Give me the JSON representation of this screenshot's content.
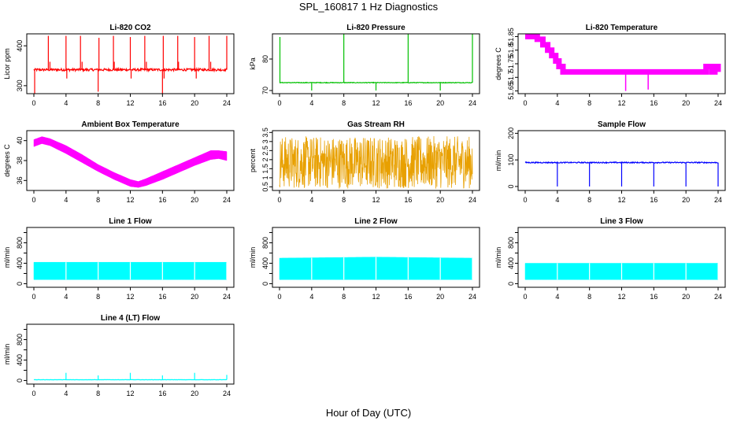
{
  "page_title": "SPL_160817  1 Hz Diagnostics",
  "x_axis_label": "Hour of Day (UTC)",
  "chart_data": [
    {
      "type": "line",
      "title": "Li-820 CO2",
      "ylabel": "Licor ppm",
      "color": "#ff0000",
      "xlim": [
        0,
        24
      ],
      "ylim": [
        280,
        430
      ],
      "xticks": [
        0,
        4,
        8,
        12,
        16,
        20,
        24
      ],
      "yticks": [
        300,
        400
      ],
      "yticklabels": [
        "300",
        "400"
      ],
      "baseline": 340,
      "noise": 3,
      "spikes": [
        [
          1.8,
          425
        ],
        [
          2.0,
          360
        ],
        [
          4.0,
          425
        ],
        [
          5.8,
          425
        ],
        [
          6.0,
          360
        ],
        [
          8.0,
          285
        ],
        [
          8.1,
          420
        ],
        [
          9.9,
          425
        ],
        [
          10.0,
          360
        ],
        [
          12.0,
          422
        ],
        [
          13.8,
          425
        ],
        [
          14.0,
          360
        ],
        [
          16.0,
          270
        ],
        [
          16.1,
          425
        ],
        [
          17.9,
          425
        ],
        [
          18.0,
          360
        ],
        [
          20.0,
          422
        ],
        [
          21.8,
          425
        ],
        [
          22.0,
          360
        ],
        [
          24.0,
          425
        ],
        [
          0.1,
          280
        ],
        [
          4.1,
          318
        ],
        [
          12.1,
          318
        ],
        [
          16.2,
          318
        ],
        [
          20.2,
          318
        ]
      ]
    },
    {
      "type": "line",
      "title": "Li-820 Pressure",
      "ylabel": "kPa",
      "color": "#00c000",
      "xlim": [
        0,
        24
      ],
      "ylim": [
        69,
        88
      ],
      "xticks": [
        0,
        4,
        8,
        12,
        16,
        20,
        24
      ],
      "yticks": [
        70,
        80
      ],
      "yticklabels": [
        "70",
        "80"
      ],
      "baseline": 72.5,
      "noise": 0.1,
      "spikes": [
        [
          0.05,
          87
        ],
        [
          8.0,
          88
        ],
        [
          16.0,
          88
        ],
        [
          24.0,
          88
        ],
        [
          4.0,
          70
        ],
        [
          12.0,
          70
        ],
        [
          20.0,
          70
        ]
      ]
    },
    {
      "type": "step",
      "title": "Li-820 Temperature",
      "ylabel": "degrees C",
      "color": "#ff00ff",
      "xlim": [
        0,
        24
      ],
      "ylim": [
        51.64,
        51.86
      ],
      "xticks": [
        0,
        4,
        8,
        12,
        16,
        20,
        24
      ],
      "yticks": [
        51.65,
        51.7,
        51.75,
        51.8,
        51.85
      ],
      "yticklabels": [
        "51.65",
        "51.7",
        "51.75",
        "51.8",
        "51.85"
      ],
      "points": [
        [
          0,
          51.85
        ],
        [
          1.5,
          51.84
        ],
        [
          2.2,
          51.82
        ],
        [
          2.8,
          51.8
        ],
        [
          3.3,
          51.78
        ],
        [
          3.8,
          51.76
        ],
        [
          4.2,
          51.74
        ],
        [
          4.7,
          51.72
        ],
        [
          5.5,
          51.72
        ],
        [
          10,
          51.72
        ],
        [
          15,
          51.72
        ],
        [
          22.3,
          51.72
        ],
        [
          22.5,
          51.74
        ],
        [
          23.2,
          51.72
        ],
        [
          23.6,
          51.74
        ],
        [
          24,
          51.72
        ]
      ]
    },
    {
      "type": "area",
      "title": "Ambient Box Temperature",
      "ylabel": "degrees C",
      "color": "#ff00ff",
      "xlim": [
        0,
        24
      ],
      "ylim": [
        35,
        41
      ],
      "xticks": [
        0,
        4,
        8,
        12,
        16,
        20,
        24
      ],
      "yticks": [
        36,
        38,
        40
      ],
      "yticklabels": [
        "36",
        "38",
        "40"
      ],
      "upper": [
        [
          0,
          40.1
        ],
        [
          1,
          40.4
        ],
        [
          2,
          40.2
        ],
        [
          4,
          39.5
        ],
        [
          6,
          38.6
        ],
        [
          8,
          37.6
        ],
        [
          10,
          36.8
        ],
        [
          12,
          36.1
        ],
        [
          13,
          35.9
        ],
        [
          14,
          36.2
        ],
        [
          16,
          36.9
        ],
        [
          18,
          37.6
        ],
        [
          20,
          38.3
        ],
        [
          22,
          39.0
        ],
        [
          23,
          39.0
        ],
        [
          24,
          38.9
        ]
      ],
      "lower": [
        [
          0,
          39.4
        ],
        [
          1,
          39.7
        ],
        [
          2,
          39.5
        ],
        [
          4,
          38.7
        ],
        [
          6,
          37.8
        ],
        [
          8,
          36.9
        ],
        [
          10,
          36.1
        ],
        [
          12,
          35.4
        ],
        [
          13,
          35.3
        ],
        [
          14,
          35.5
        ],
        [
          16,
          36.1
        ],
        [
          18,
          36.8
        ],
        [
          20,
          37.5
        ],
        [
          22,
          38.1
        ],
        [
          23,
          38.2
        ],
        [
          24,
          38.0
        ]
      ]
    },
    {
      "type": "area",
      "title": "Gas Stream RH",
      "ylabel": "percent",
      "color": "#e8a000",
      "xlim": [
        0,
        24
      ],
      "ylim": [
        0.3,
        3.6
      ],
      "xticks": [
        0,
        4,
        8,
        12,
        16,
        20,
        24
      ],
      "yticks": [
        0.5,
        1,
        1.5,
        2,
        2.5,
        3,
        3.5
      ],
      "yticklabels": [
        "0.5",
        "1",
        "1.5",
        "2",
        "2.5",
        "3",
        "3.5"
      ],
      "upper": [
        [
          0,
          2.8
        ],
        [
          24,
          2.8
        ]
      ],
      "lower": [
        [
          0,
          1.0
        ],
        [
          24,
          1.0
        ]
      ],
      "range": [
        0.4,
        3.3
      ]
    },
    {
      "type": "line",
      "title": "Sample Flow",
      "ylabel": "ml/min",
      "color": "#0000ff",
      "xlim": [
        0,
        24
      ],
      "ylim": [
        -15,
        210
      ],
      "xticks": [
        0,
        4,
        8,
        12,
        16,
        20,
        24
      ],
      "yticks": [
        0,
        100,
        200
      ],
      "yticklabels": [
        "0",
        "100",
        "200"
      ],
      "baseline": 90,
      "noise": 2,
      "spikes": [
        [
          4.0,
          0
        ],
        [
          8.0,
          0
        ],
        [
          12.0,
          0
        ],
        [
          16.0,
          0
        ],
        [
          20.0,
          0
        ],
        [
          24.0,
          0
        ]
      ]
    },
    {
      "type": "area",
      "title": "Line 1 Flow",
      "ylabel": "ml/min",
      "color": "#00ffff",
      "xlim": [
        0,
        24
      ],
      "ylim": [
        -70,
        1100
      ],
      "xticks": [
        0,
        4,
        8,
        12,
        16,
        20,
        24
      ],
      "yticks": [
        0,
        200,
        400,
        600,
        800,
        1000
      ],
      "yticklabels": [
        "0",
        "400",
        "800"
      ],
      "upper": [
        [
          0,
          420
        ],
        [
          24,
          420
        ]
      ],
      "lower": [
        [
          0,
          80
        ],
        [
          24,
          80
        ]
      ]
    },
    {
      "type": "area",
      "title": "Line 2 Flow",
      "ylabel": "ml/min",
      "color": "#00ffff",
      "xlim": [
        0,
        24
      ],
      "ylim": [
        -70,
        1100
      ],
      "xticks": [
        0,
        4,
        8,
        12,
        16,
        20,
        24
      ],
      "yticks": [
        0,
        200,
        400,
        600,
        800,
        1000
      ],
      "yticklabels": [
        "0",
        "400",
        "800"
      ],
      "upper": [
        [
          0,
          500
        ],
        [
          12,
          520
        ],
        [
          24,
          500
        ]
      ],
      "lower": [
        [
          0,
          80
        ],
        [
          24,
          80
        ]
      ]
    },
    {
      "type": "area",
      "title": "Line 3 Flow",
      "ylabel": "ml/min",
      "color": "#00ffff",
      "xlim": [
        0,
        24
      ],
      "ylim": [
        -70,
        1100
      ],
      "xticks": [
        0,
        4,
        8,
        12,
        16,
        20,
        24
      ],
      "yticks": [
        0,
        200,
        400,
        600,
        800,
        1000
      ],
      "yticklabels": [
        "0",
        "400",
        "800"
      ],
      "upper": [
        [
          0,
          400
        ],
        [
          24,
          400
        ]
      ],
      "lower": [
        [
          0,
          80
        ],
        [
          24,
          80
        ]
      ]
    },
    {
      "type": "line",
      "title": "Line 4 (LT) Flow",
      "ylabel": "ml/min",
      "color": "#00ffff",
      "xlim": [
        0,
        24
      ],
      "ylim": [
        -70,
        1100
      ],
      "xticks": [
        0,
        4,
        8,
        12,
        16,
        20,
        24
      ],
      "yticks": [
        0,
        200,
        400,
        600,
        800,
        1000
      ],
      "yticklabels": [
        "0",
        "400",
        "800"
      ],
      "baseline": 15,
      "noise": 2,
      "spikes": [
        [
          4.0,
          150
        ],
        [
          8.0,
          100
        ],
        [
          12.0,
          150
        ],
        [
          16.0,
          100
        ],
        [
          20.0,
          150
        ],
        [
          24.0,
          110
        ]
      ]
    }
  ]
}
